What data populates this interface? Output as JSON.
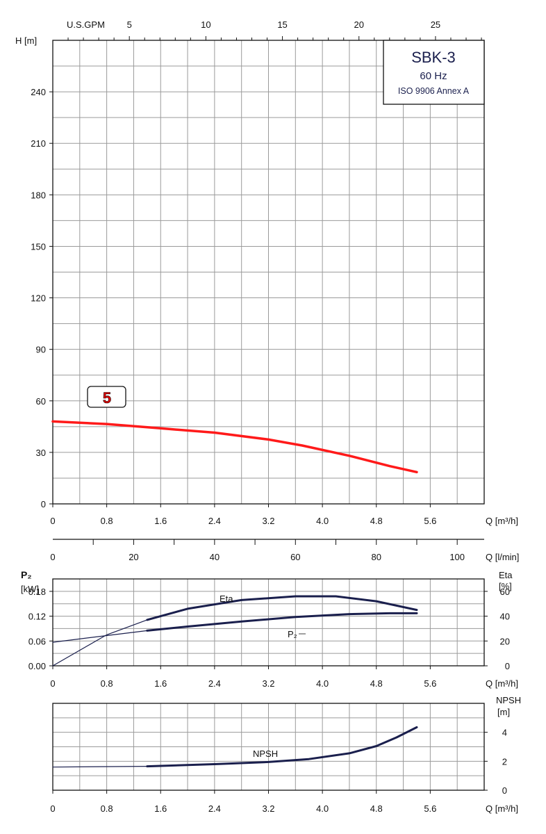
{
  "title_box": {
    "model": "SBK-3",
    "frequency": "60 Hz",
    "standard": "ISO 9906 Annex A"
  },
  "curve_badge": "5",
  "colors": {
    "head_curve": "#ff1a1a",
    "aux_curve": "#1a1f4d",
    "grid": "#9a9a9a",
    "title_text": "#1a1f4d"
  },
  "axis_labels": {
    "h": "H [m]",
    "usgpm": "U.S.GPM",
    "q_m3h": "Q [m³/h]",
    "q_lmin": "Q [l/min]",
    "p2": "P₂",
    "p2_unit": "[kW]",
    "eta": "Eta",
    "eta_unit": "[%]",
    "npsh": "NPSH",
    "npsh_unit": "[m]"
  },
  "curve_labels": {
    "eta": "Eta",
    "p2": "P₂",
    "npsh": "NPSH"
  },
  "chart_data": [
    {
      "type": "line",
      "title": "SBK-3 60 Hz",
      "xlabel": "Q [m³/h]",
      "ylabel": "H [m]",
      "xlim": [
        0,
        6.4
      ],
      "ylim": [
        0,
        270
      ],
      "x_ticks": [
        "0",
        "0.8",
        "1.6",
        "2.4",
        "3.2",
        "4.0",
        "4.8",
        "5.6"
      ],
      "y_ticks": [
        "0",
        "30",
        "60",
        "90",
        "120",
        "150",
        "180",
        "210",
        "240"
      ],
      "top_axis": {
        "label": "U.S.GPM",
        "ticks": [
          "5",
          "10",
          "15",
          "20",
          "25"
        ],
        "factor": 4.403
      },
      "secondary_axis": {
        "label": "Q [l/min]",
        "ticks": [
          "0",
          "20",
          "40",
          "60",
          "80",
          "100"
        ],
        "factor": 16.667
      },
      "grid": true,
      "series": [
        {
          "name": "5",
          "x": [
            0,
            0.8,
            1.6,
            2.4,
            3.2,
            3.7,
            4.4,
            5.0,
            5.4
          ],
          "y": [
            48,
            46.5,
            44,
            41.5,
            37.5,
            34,
            28,
            22,
            18.5
          ]
        }
      ]
    },
    {
      "type": "line",
      "xlabel": "Q [m³/h]",
      "ylabel": "P₂ [kW]",
      "xlim": [
        0,
        6.4
      ],
      "ylim": [
        0,
        0.21
      ],
      "x_ticks": [
        "0",
        "0.8",
        "1.6",
        "2.4",
        "3.2",
        "4.0",
        "4.8",
        "5.6"
      ],
      "y_ticks": [
        "0.00",
        "0.06",
        "0.12",
        "0.18"
      ],
      "y2": {
        "label": "Eta [%]",
        "lim": [
          0,
          70
        ],
        "ticks": [
          "0",
          "20",
          "40",
          "60"
        ]
      },
      "grid": true,
      "series": [
        {
          "name": "Eta",
          "axis": "right",
          "x": [
            0,
            0.8,
            1.4,
            2.0,
            2.8,
            3.6,
            4.2,
            4.8,
            5.4
          ],
          "y": [
            0,
            25,
            37,
            46,
            53,
            56,
            56,
            52,
            45
          ]
        },
        {
          "name": "P₂",
          "axis": "left",
          "x": [
            0,
            0.8,
            1.4,
            2.0,
            2.8,
            3.6,
            4.4,
            5.0,
            5.4
          ],
          "y": [
            0.057,
            0.073,
            0.085,
            0.095,
            0.107,
            0.118,
            0.125,
            0.127,
            0.127
          ]
        }
      ]
    },
    {
      "type": "line",
      "xlabel": "Q [m³/h]",
      "ylabel": "NPSH [m]",
      "xlim": [
        0,
        6.4
      ],
      "ylim": [
        0,
        6
      ],
      "x_ticks": [
        "0",
        "0.8",
        "1.6",
        "2.4",
        "3.2",
        "4.0",
        "4.8",
        "5.6"
      ],
      "y_ticks": [
        "0",
        "2",
        "4"
      ],
      "grid": true,
      "series": [
        {
          "name": "NPSH",
          "x": [
            0,
            1.4,
            2.4,
            3.2,
            3.8,
            4.4,
            4.8,
            5.1,
            5.4
          ],
          "y": [
            1.6,
            1.65,
            1.8,
            1.95,
            2.15,
            2.55,
            3.05,
            3.65,
            4.35
          ]
        }
      ]
    }
  ]
}
